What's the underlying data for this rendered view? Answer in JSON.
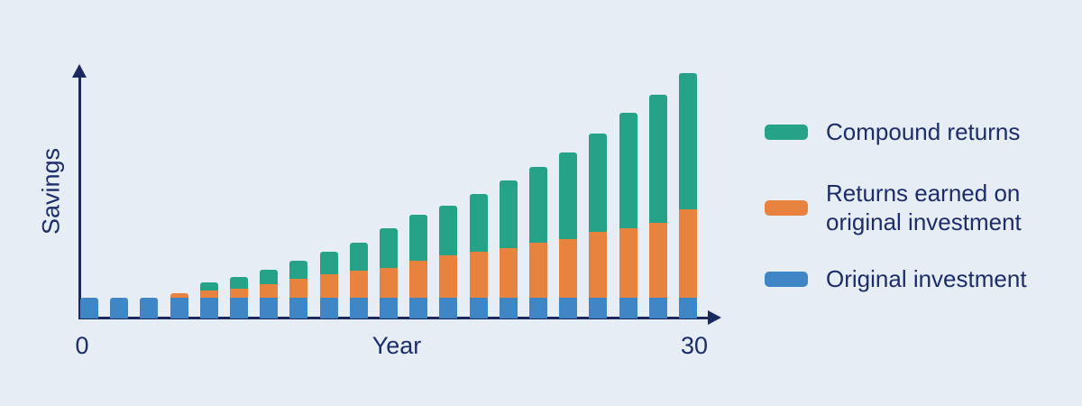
{
  "chart_data": {
    "type": "bar",
    "stacked": true,
    "num_bars": 21,
    "x_axis": {
      "label": "Year",
      "tick_labels": [
        "0",
        "30"
      ],
      "range": [
        0,
        30
      ]
    },
    "y_axis": {
      "label": "Savings"
    },
    "legend_position": "right",
    "legend": [
      {
        "name": "Compound returns",
        "color": "#25a287"
      },
      {
        "name": "Returns earned on original investment",
        "color": "#e8823f"
      },
      {
        "name": "Original investment",
        "color": "#3e86c6"
      }
    ],
    "series": [
      {
        "name": "Original investment",
        "color": "#3e86c6",
        "values": [
          1,
          1,
          1,
          1,
          1,
          1,
          1,
          1,
          1,
          1,
          1,
          1,
          1,
          1,
          1,
          1,
          1,
          1,
          1,
          1,
          1
        ]
      },
      {
        "name": "Returns earned on original investment",
        "color": "#e8823f",
        "values": [
          0,
          0,
          0,
          0.22,
          0.35,
          0.43,
          0.65,
          0.91,
          1.13,
          1.3,
          1.43,
          1.78,
          2.04,
          2.22,
          2.39,
          2.65,
          2.83,
          3.17,
          3.35,
          3.61,
          4.26
        ]
      },
      {
        "name": "Compound returns",
        "color": "#25a287",
        "values": [
          0,
          0,
          0,
          0,
          0.39,
          0.57,
          0.7,
          0.87,
          1.09,
          1.35,
          1.91,
          2.22,
          2.39,
          2.78,
          3.26,
          3.65,
          4.17,
          4.74,
          5.57,
          6.17,
          6.57
        ]
      }
    ]
  },
  "colors": {
    "background": "#e6edf5",
    "axis": "#1b2960",
    "text": "#1d2d6b"
  }
}
